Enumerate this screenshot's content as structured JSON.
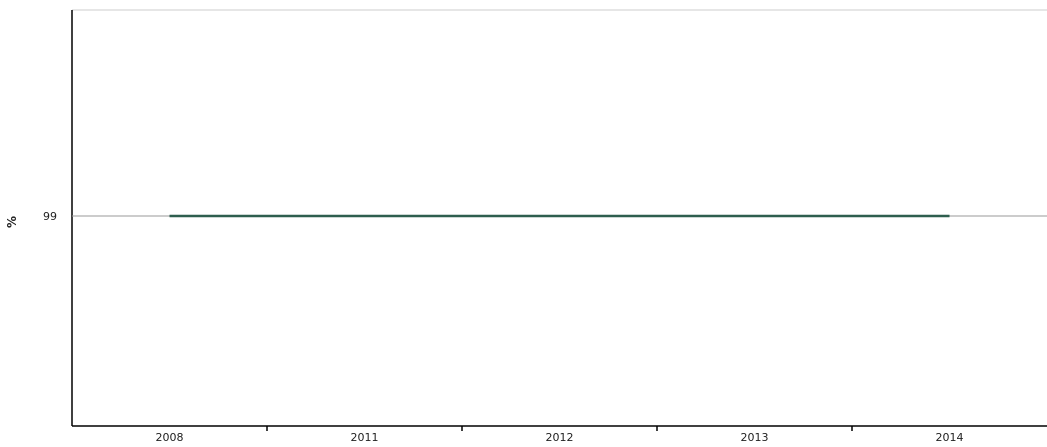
{
  "chart_data": {
    "type": "line",
    "title": "",
    "xlabel": "",
    "ylabel": "%",
    "categories": [
      "2008",
      "2011",
      "2012",
      "2013",
      "2014"
    ],
    "series": [
      {
        "values": [
          99,
          99,
          99,
          99,
          99
        ]
      }
    ],
    "yticks": [
      "99"
    ],
    "ylim": [
      98,
      100
    ],
    "grid": "horizontal at y tick",
    "legend": "none",
    "colors": {
      "series": "#2e5e4e",
      "axis": "#000000",
      "gridline": "#999999",
      "frame_top": "#cccccc"
    }
  }
}
